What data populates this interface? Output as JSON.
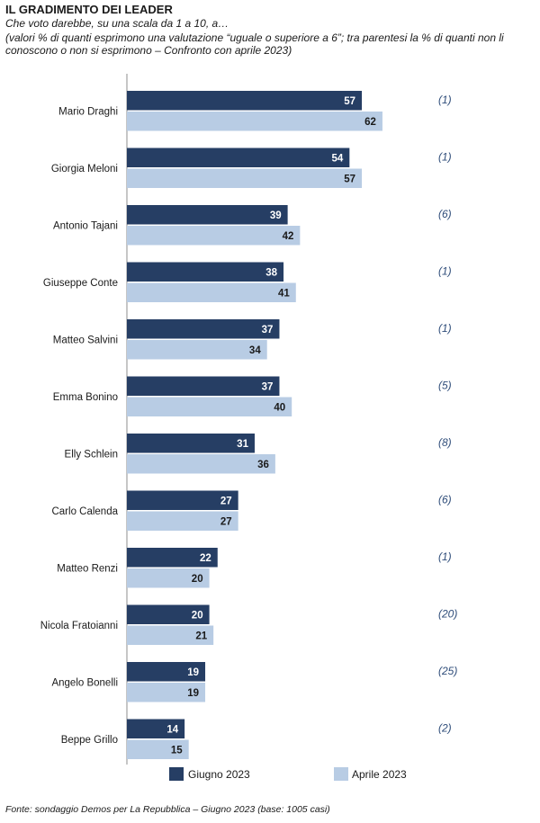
{
  "header": {
    "title": "IL GRADIMENTO DEI LEADER",
    "subtitle": "Che voto darebbe, su una scala da 1 a 10, a…",
    "note": "(valori % di quanti esprimono una valutazione “uguale o superiore a 6”; tra parentesi la % di quanti non li conoscono o non si esprimono – Confronto con aprile 2023)"
  },
  "footer": {
    "source": "Fonte: sondaggio Demos per La Repubblica – Giugno 2023 (base: 1005 casi)"
  },
  "colors": {
    "giugno": "#263e64",
    "aprile": "#b8cce4",
    "paren": "#2f4d7a"
  },
  "chart_data": {
    "type": "bar",
    "orientation": "horizontal",
    "categories": [
      "Mario Draghi",
      "Giorgia Meloni",
      "Antonio Tajani",
      "Giuseppe Conte",
      "Matteo Salvini",
      "Emma Bonino",
      "Elly Schlein",
      "Carlo Calenda",
      "Matteo Renzi",
      "Nicola Fratoianni",
      "Angelo Bonelli",
      "Beppe Grillo"
    ],
    "series": [
      {
        "name": "Giugno 2023",
        "values": [
          57,
          54,
          39,
          38,
          37,
          37,
          31,
          27,
          22,
          20,
          19,
          14
        ]
      },
      {
        "name": "Aprile 2023",
        "values": [
          62,
          57,
          42,
          41,
          34,
          40,
          36,
          27,
          20,
          21,
          19,
          15
        ]
      }
    ],
    "annotations": [
      "(1)",
      "(1)",
      "(6)",
      "(1)",
      "(1)",
      "(5)",
      "(8)",
      "(6)",
      "(1)",
      "(20)",
      "(25)",
      "(2)"
    ],
    "xlim": [
      0,
      100
    ],
    "grid": false,
    "legend_position": "bottom"
  }
}
